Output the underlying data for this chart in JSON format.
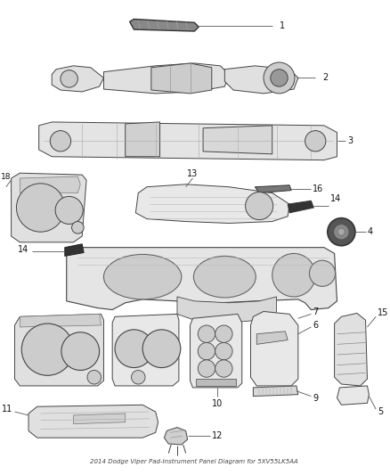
{
  "title": "2014 Dodge Viper Pad-Instrument Panel Diagram for 5XV55LK5AA",
  "bg_color": "#ffffff",
  "fig_w": 4.38,
  "fig_h": 5.33,
  "dpi": 100,
  "lc": "#555555",
  "tc": "#111111",
  "label_fs": 7,
  "callout_lw": 0.6,
  "callout_color": "#555555",
  "parts_sketch_color": "#444444",
  "parts_fill_color": "#d8d8d8",
  "parts_lw": 0.7
}
